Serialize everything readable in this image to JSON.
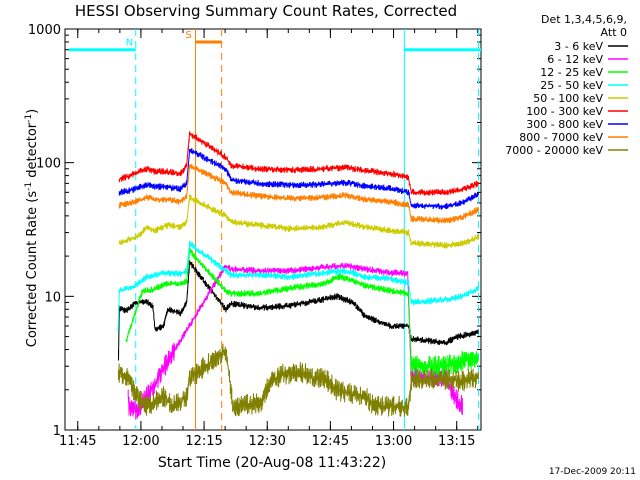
{
  "chart_data": {
    "type": "line",
    "title": "HESSI Observing Summary Count Rates, Corrected",
    "xlabel": "Start Time (20-Aug-08 11:43:22)",
    "ylabel_main": "Corrected Count Rate (s",
    "ylabel_sup1": "-1",
    "ylabel_mid": " detector",
    "ylabel_sup2": "-1",
    "ylabel_end": ")",
    "yscale": "log",
    "ylim": [
      1,
      1000
    ],
    "xlim_min": [
      -1.4,
      97.4
    ],
    "x_unit": "minutes after 11:43:22",
    "x_ticks": [
      {
        "label": "11:45",
        "min": 1.63
      },
      {
        "label": "12:00",
        "min": 16.63
      },
      {
        "label": "12:15",
        "min": 31.63
      },
      {
        "label": "12:30",
        "min": 46.63
      },
      {
        "label": "12:45",
        "min": 61.63
      },
      {
        "label": "13:00",
        "min": 76.63
      },
      {
        "label": "13:15",
        "min": 91.63
      }
    ],
    "y_ticks": [
      {
        "label": "1",
        "v": 1
      },
      {
        "label": "10",
        "v": 10
      },
      {
        "label": "100",
        "v": 100
      },
      {
        "label": "1000",
        "v": 1000
      }
    ],
    "legend_header": [
      "Det 1,3,4,5,6,9,",
      "Att 0"
    ],
    "legend_position": "right",
    "series": [
      {
        "name": "3 - 6 keV",
        "color": "#000000",
        "points": [
          [
            11.3,
            3.5
          ],
          [
            11.5,
            8.2
          ],
          [
            13,
            7.8
          ],
          [
            14,
            8.1
          ],
          [
            15,
            8.8
          ],
          [
            18,
            9.2
          ],
          [
            19.5,
            8.3
          ],
          [
            20,
            5.7
          ],
          [
            22,
            6
          ],
          [
            23,
            8
          ],
          [
            26,
            7.5
          ],
          [
            27.5,
            9
          ],
          [
            28.2,
            18
          ],
          [
            36.8,
            8
          ],
          [
            38,
            8.8
          ],
          [
            45,
            8.2
          ],
          [
            52,
            8.5
          ],
          [
            60,
            9.5
          ],
          [
            63,
            10
          ],
          [
            67,
            9
          ],
          [
            70,
            7
          ],
          [
            73,
            6.5
          ],
          [
            76,
            6
          ],
          [
            77.5,
            6
          ],
          [
            80.2,
            6
          ],
          [
            80.8,
            4.8
          ],
          [
            89,
            4.5
          ],
          [
            92,
            5
          ],
          [
            96.8,
            5.4
          ]
        ]
      },
      {
        "name": "6 - 12 keV",
        "color": "#ff00ff",
        "points": [
          [
            13.6,
            2
          ],
          [
            13.8,
            1.5
          ],
          [
            16,
            1.4
          ],
          [
            36.8,
            17
          ],
          [
            38,
            16
          ],
          [
            45,
            15.5
          ],
          [
            52,
            15.5
          ],
          [
            60,
            16.5
          ],
          [
            65,
            17
          ],
          [
            70,
            16
          ],
          [
            76,
            15
          ],
          [
            80,
            14.8
          ],
          [
            80.8,
            2.5
          ],
          [
            89,
            2.5
          ],
          [
            91,
            1.8
          ],
          [
            93,
            1.5
          ]
        ]
      },
      {
        "name": "12 - 25 keV",
        "color": "#00ff00",
        "points": [
          [
            13.1,
            4.6
          ],
          [
            17,
            11
          ],
          [
            19.5,
            11.2
          ],
          [
            20,
            11.5
          ],
          [
            23,
            12.5
          ],
          [
            26,
            12.3
          ],
          [
            27.5,
            13
          ],
          [
            28.2,
            22
          ],
          [
            36.8,
            11
          ],
          [
            38,
            10.5
          ],
          [
            45,
            10.5
          ],
          [
            52,
            11.5
          ],
          [
            60,
            12.5
          ],
          [
            64,
            14
          ],
          [
            70,
            12
          ],
          [
            76,
            11
          ],
          [
            80.2,
            10.5
          ],
          [
            80.8,
            3
          ],
          [
            89,
            3
          ],
          [
            92,
            3.2
          ],
          [
            96.8,
            3.5
          ]
        ]
      },
      {
        "name": "25 - 50 keV",
        "color": "#00ffff",
        "points": [
          [
            11.2,
            5.5
          ],
          [
            11.5,
            11
          ],
          [
            14,
            11.5
          ],
          [
            16,
            12.5
          ],
          [
            18,
            14
          ],
          [
            20,
            14.5
          ],
          [
            23,
            15
          ],
          [
            26,
            14.7
          ],
          [
            27.5,
            15.5
          ],
          [
            28.2,
            25
          ],
          [
            36.8,
            15.5
          ],
          [
            38,
            14.5
          ],
          [
            45,
            14.5
          ],
          [
            52,
            14
          ],
          [
            60,
            15
          ],
          [
            65,
            15.5
          ],
          [
            70,
            14
          ],
          [
            76,
            13.5
          ],
          [
            80.2,
            12.5
          ],
          [
            80.8,
            9
          ],
          [
            89,
            9.5
          ],
          [
            93,
            10
          ],
          [
            96.8,
            11.5
          ]
        ]
      },
      {
        "name": "50 - 100 keV",
        "color": "#cccc00",
        "points": [
          [
            11.5,
            25
          ],
          [
            14,
            27
          ],
          [
            16,
            28
          ],
          [
            18,
            33
          ],
          [
            20,
            31
          ],
          [
            23,
            34
          ],
          [
            26,
            33
          ],
          [
            27.5,
            36
          ],
          [
            28.2,
            55
          ],
          [
            36.8,
            40
          ],
          [
            38,
            36
          ],
          [
            45,
            34
          ],
          [
            52,
            32
          ],
          [
            60,
            33
          ],
          [
            65,
            36
          ],
          [
            70,
            33
          ],
          [
            76,
            31
          ],
          [
            80.2,
            30
          ],
          [
            80.8,
            25
          ],
          [
            89,
            24
          ],
          [
            93,
            25
          ],
          [
            96.8,
            28
          ]
        ]
      },
      {
        "name": "100 - 300 keV",
        "color": "#ff0000",
        "points": [
          [
            11.5,
            75
          ],
          [
            14,
            80
          ],
          [
            16,
            85
          ],
          [
            18,
            90
          ],
          [
            20,
            86
          ],
          [
            23,
            86
          ],
          [
            26,
            82
          ],
          [
            27.5,
            95
          ],
          [
            28.2,
            165
          ],
          [
            36.8,
            110
          ],
          [
            38,
            95
          ],
          [
            45,
            90
          ],
          [
            52,
            88
          ],
          [
            60,
            90
          ],
          [
            65,
            92
          ],
          [
            70,
            87
          ],
          [
            76,
            83
          ],
          [
            80.2,
            78
          ],
          [
            80.8,
            60
          ],
          [
            89,
            60
          ],
          [
            93,
            63
          ],
          [
            96.8,
            70
          ]
        ]
      },
      {
        "name": "300 - 800 keV",
        "color": "#0000ff",
        "points": [
          [
            11.5,
            60
          ],
          [
            14,
            62
          ],
          [
            16,
            65
          ],
          [
            18,
            68
          ],
          [
            20,
            66
          ],
          [
            23,
            66
          ],
          [
            26,
            63
          ],
          [
            27.5,
            70
          ],
          [
            28.2,
            125
          ],
          [
            36.8,
            90
          ],
          [
            38,
            74
          ],
          [
            45,
            70
          ],
          [
            52,
            68
          ],
          [
            60,
            69
          ],
          [
            65,
            71
          ],
          [
            70,
            67
          ],
          [
            76,
            64
          ],
          [
            80.2,
            60
          ],
          [
            80.8,
            48
          ],
          [
            89,
            47
          ],
          [
            93,
            50
          ],
          [
            96.8,
            58
          ]
        ]
      },
      {
        "name": "800 - 7000 keV",
        "color": "#ff7f00",
        "points": [
          [
            11.5,
            48
          ],
          [
            14,
            50
          ],
          [
            16,
            52
          ],
          [
            18,
            55
          ],
          [
            20,
            53
          ],
          [
            23,
            53
          ],
          [
            26,
            51
          ],
          [
            27.5,
            56
          ],
          [
            28.2,
            95
          ],
          [
            36.8,
            70
          ],
          [
            38,
            60
          ],
          [
            45,
            56
          ],
          [
            52,
            54
          ],
          [
            60,
            55
          ],
          [
            65,
            57
          ],
          [
            70,
            53
          ],
          [
            76,
            51
          ],
          [
            80.2,
            48
          ],
          [
            80.8,
            38
          ],
          [
            89,
            37
          ],
          [
            93,
            39
          ],
          [
            96.8,
            45
          ]
        ]
      },
      {
        "name": "7000 - 20000 keV",
        "color": "#808000",
        "points": [
          [
            11.3,
            2.7
          ],
          [
            13,
            2.5
          ],
          [
            14,
            2.3
          ],
          [
            16,
            1.7
          ],
          [
            18,
            1.5
          ],
          [
            20,
            1.6
          ],
          [
            22,
            1.8
          ],
          [
            24,
            1.5
          ],
          [
            26,
            1.6
          ],
          [
            27.5,
            1.8
          ],
          [
            28.2,
            2.4
          ],
          [
            36.8,
            4
          ],
          [
            37.5,
            2.7
          ],
          [
            38.5,
            1.5
          ],
          [
            45,
            1.6
          ],
          [
            47,
            2.2
          ],
          [
            50,
            2.6
          ],
          [
            55,
            2.7
          ],
          [
            58,
            2.4
          ],
          [
            60,
            2.5
          ],
          [
            63,
            2
          ],
          [
            65,
            1.9
          ],
          [
            70,
            1.8
          ],
          [
            72,
            1.5
          ],
          [
            76,
            1.5
          ],
          [
            80,
            1.5
          ],
          [
            81,
            2.4
          ],
          [
            89,
            2.4
          ],
          [
            93,
            2.3
          ],
          [
            96.8,
            2.5
          ]
        ]
      }
    ],
    "flags": [
      {
        "label": "N",
        "color": "#00ffff",
        "level": 700,
        "segments": [
          [
            -0.5,
            15.4
          ],
          [
            79.2,
            99
          ]
        ]
      },
      {
        "label": "S",
        "color": "#ff7f00",
        "level": 800,
        "segments": [
          [
            29.6,
            35.8
          ]
        ]
      }
    ],
    "vlines": [
      {
        "x": 15.4,
        "color": "#00ffff",
        "style": "dashed"
      },
      {
        "x": 79.2,
        "color": "#00ffff",
        "style": "solid"
      },
      {
        "x": 96.8,
        "color": "#00ffff",
        "style": "dashed"
      },
      {
        "x": 29.6,
        "color": "#ff7f00",
        "style": "solid"
      },
      {
        "x": 35.8,
        "color": "#ff7f00",
        "style": "dashed"
      }
    ],
    "footer_date": "17-Dec-2009 20:11"
  }
}
